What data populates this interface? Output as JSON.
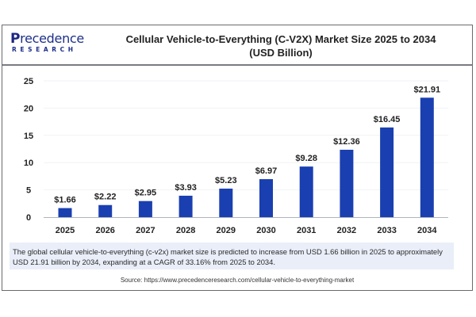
{
  "brand": {
    "logo_main_initial": "P",
    "logo_main_rest": "recedence",
    "logo_sub": "RESEARCH"
  },
  "header": {
    "title_line1": "Cellular Vehicle-to-Everything (C-V2X) Market Size 2025 to 2034",
    "title_line2": "(USD Billion)"
  },
  "colors": {
    "bar": "#1a3fb0",
    "axis": "#b0b4bc",
    "grid": "#f1f2f4",
    "caption_bg": "#e9eef8"
  },
  "chart_data": {
    "type": "bar",
    "title": "Cellular Vehicle-to-Everything (C-V2X) Market Size 2025 to 2034 (USD Billion)",
    "xlabel": "",
    "ylabel": "",
    "categories": [
      "2025",
      "2026",
      "2027",
      "2028",
      "2029",
      "2030",
      "2031",
      "2032",
      "2033",
      "2034"
    ],
    "values": [
      1.66,
      2.22,
      2.95,
      3.93,
      5.23,
      6.97,
      9.28,
      12.36,
      16.45,
      21.91
    ],
    "data_labels": [
      "$1.66",
      "$2.22",
      "$2.95",
      "$3.93",
      "$5.23",
      "$6.97",
      "$9.28",
      "$12.36",
      "$16.45",
      "$21.91"
    ],
    "yticks": [
      0,
      5,
      10,
      15,
      20,
      25
    ],
    "ylim": [
      0,
      25
    ],
    "grid": true,
    "legend": "none"
  },
  "caption": {
    "text": "The global cellular vehicle-to-everything (c-v2x) market size is predicted to increase from USD 1.66 billion in 2025 to approximately USD 21.91 billion by 2034, expanding at a CAGR of 33.16% from 2025 to 2034."
  },
  "source": {
    "text": "Source: https://www.precedenceresearch.com/cellular-vehicle-to-everything-market"
  }
}
